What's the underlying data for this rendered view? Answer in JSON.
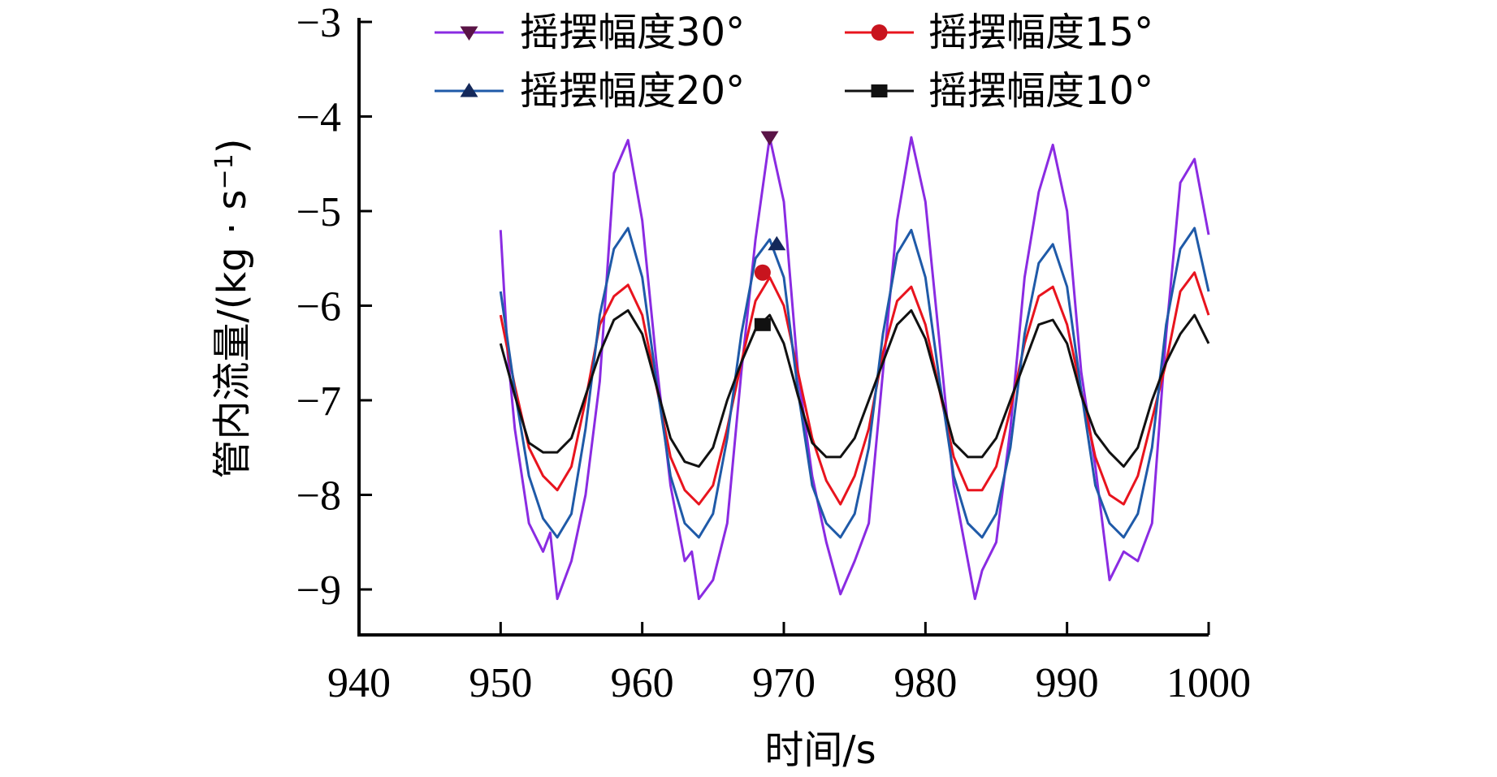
{
  "chart_data": {
    "type": "line",
    "xlabel": "时间/s",
    "ylabel": "管内流量/(kg · s",
    "ylabel_sup": "−1",
    "ylabel_close": ")",
    "xlim": [
      940,
      1000
    ],
    "ylim": [
      -9.5,
      -3
    ],
    "xticks": [
      940,
      950,
      960,
      970,
      980,
      990,
      1000
    ],
    "xtick_labels": [
      "940",
      "950",
      "960",
      "970",
      "980",
      "990",
      "1000"
    ],
    "yticks": [
      -3,
      -4,
      -5,
      -6,
      -7,
      -8,
      -9
    ],
    "ytick_labels": [
      "−3",
      "−4",
      "−5",
      "−6",
      "−7",
      "−8",
      "−9"
    ],
    "legend_position": "top",
    "series": [
      {
        "name": "摇摆幅度30°",
        "color": "#8a2be2",
        "marker": "triangle-down",
        "marker_color": "#5a1446",
        "marker_point": [
          969,
          -4.22
        ],
        "x": [
          950,
          950.5,
          951,
          952,
          953,
          953.5,
          954,
          955,
          956,
          957,
          958,
          959,
          960,
          961,
          962,
          963,
          963.5,
          964,
          965,
          966,
          967,
          968,
          969,
          970,
          971,
          972,
          973,
          974,
          975,
          976,
          977,
          978,
          979,
          980,
          981,
          982,
          983,
          983.5,
          984,
          985,
          986,
          987,
          988,
          989,
          990,
          991,
          992,
          993,
          994,
          995,
          996,
          997,
          998,
          999,
          1000
        ],
        "y": [
          -5.2,
          -6.5,
          -7.3,
          -8.3,
          -8.6,
          -8.4,
          -9.1,
          -8.7,
          -8.0,
          -6.8,
          -4.6,
          -4.25,
          -5.1,
          -6.6,
          -7.9,
          -8.7,
          -8.6,
          -9.1,
          -8.9,
          -8.3,
          -6.7,
          -5.3,
          -4.22,
          -4.9,
          -6.7,
          -7.8,
          -8.5,
          -9.05,
          -8.7,
          -8.3,
          -6.7,
          -5.1,
          -4.22,
          -4.9,
          -6.4,
          -7.9,
          -8.7,
          -9.1,
          -8.8,
          -8.5,
          -7.3,
          -5.7,
          -4.8,
          -4.3,
          -5.0,
          -6.7,
          -7.7,
          -8.9,
          -8.6,
          -8.7,
          -8.3,
          -6.3,
          -4.7,
          -4.45,
          -5.25
        ]
      },
      {
        "name": "摇摆幅度15°",
        "color": "#e8141e",
        "marker": "circle",
        "marker_color": "#c8141e",
        "marker_point": [
          968.5,
          -5.65
        ],
        "x": [
          950,
          951,
          952,
          953,
          954,
          955,
          956,
          957,
          958,
          959,
          960,
          961,
          962,
          963,
          964,
          965,
          966,
          967,
          968,
          969,
          970,
          971,
          972,
          973,
          974,
          975,
          976,
          977,
          978,
          979,
          980,
          981,
          982,
          983,
          984,
          985,
          986,
          987,
          988,
          989,
          990,
          991,
          992,
          993,
          994,
          995,
          996,
          997,
          998,
          999,
          1000
        ],
        "y": [
          -6.1,
          -6.85,
          -7.5,
          -7.8,
          -7.95,
          -7.7,
          -7.0,
          -6.2,
          -5.9,
          -5.78,
          -6.1,
          -6.85,
          -7.6,
          -7.95,
          -8.1,
          -7.9,
          -7.3,
          -6.6,
          -5.95,
          -5.7,
          -6.0,
          -6.7,
          -7.4,
          -7.85,
          -8.1,
          -7.8,
          -7.3,
          -6.5,
          -5.95,
          -5.8,
          -6.2,
          -6.9,
          -7.6,
          -7.95,
          -7.95,
          -7.7,
          -7.1,
          -6.4,
          -5.9,
          -5.8,
          -6.2,
          -6.9,
          -7.6,
          -8.0,
          -8.1,
          -7.8,
          -7.2,
          -6.6,
          -5.85,
          -5.65,
          -6.1
        ]
      },
      {
        "name": "摇摆幅度20°",
        "color": "#1f5aa8",
        "marker": "triangle-up",
        "marker_color": "#14285a",
        "marker_point": [
          969.5,
          -5.35
        ],
        "x": [
          950,
          951,
          952,
          953,
          954,
          955,
          956,
          957,
          958,
          959,
          960,
          961,
          962,
          963,
          964,
          965,
          966,
          967,
          968,
          969,
          970,
          971,
          972,
          973,
          974,
          975,
          976,
          977,
          978,
          979,
          980,
          981,
          982,
          983,
          984,
          985,
          986,
          987,
          988,
          989,
          990,
          991,
          992,
          993,
          994,
          995,
          996,
          997,
          998,
          999,
          1000
        ],
        "y": [
          -5.85,
          -6.9,
          -7.8,
          -8.25,
          -8.45,
          -8.2,
          -7.3,
          -6.1,
          -5.4,
          -5.18,
          -5.7,
          -6.8,
          -7.8,
          -8.3,
          -8.45,
          -8.2,
          -7.4,
          -6.3,
          -5.5,
          -5.3,
          -5.7,
          -6.9,
          -7.9,
          -8.3,
          -8.45,
          -8.2,
          -7.5,
          -6.3,
          -5.45,
          -5.2,
          -5.7,
          -6.8,
          -7.8,
          -8.3,
          -8.45,
          -8.2,
          -7.5,
          -6.3,
          -5.55,
          -5.35,
          -5.8,
          -6.9,
          -7.9,
          -8.3,
          -8.45,
          -8.2,
          -7.5,
          -6.2,
          -5.4,
          -5.18,
          -5.85
        ]
      },
      {
        "name": "摇摆幅度10°",
        "color": "#111111",
        "marker": "square",
        "marker_color": "#111111",
        "marker_point": [
          968.5,
          -6.2
        ],
        "x": [
          950,
          951,
          952,
          953,
          954,
          955,
          956,
          957,
          958,
          959,
          960,
          961,
          962,
          963,
          964,
          965,
          966,
          967,
          968,
          969,
          970,
          971,
          972,
          973,
          974,
          975,
          976,
          977,
          978,
          979,
          980,
          981,
          982,
          983,
          984,
          985,
          986,
          987,
          988,
          989,
          990,
          991,
          992,
          993,
          994,
          995,
          996,
          997,
          998,
          999,
          1000
        ],
        "y": [
          -6.4,
          -6.95,
          -7.45,
          -7.55,
          -7.55,
          -7.4,
          -6.95,
          -6.5,
          -6.15,
          -6.05,
          -6.3,
          -6.85,
          -7.4,
          -7.65,
          -7.7,
          -7.5,
          -7.0,
          -6.6,
          -6.25,
          -6.1,
          -6.4,
          -6.95,
          -7.45,
          -7.6,
          -7.6,
          -7.4,
          -7.0,
          -6.6,
          -6.2,
          -6.05,
          -6.35,
          -6.9,
          -7.45,
          -7.6,
          -7.6,
          -7.4,
          -7.0,
          -6.6,
          -6.2,
          -6.15,
          -6.4,
          -6.95,
          -7.35,
          -7.55,
          -7.7,
          -7.5,
          -7.0,
          -6.6,
          -6.3,
          -6.1,
          -6.4
        ]
      }
    ]
  }
}
